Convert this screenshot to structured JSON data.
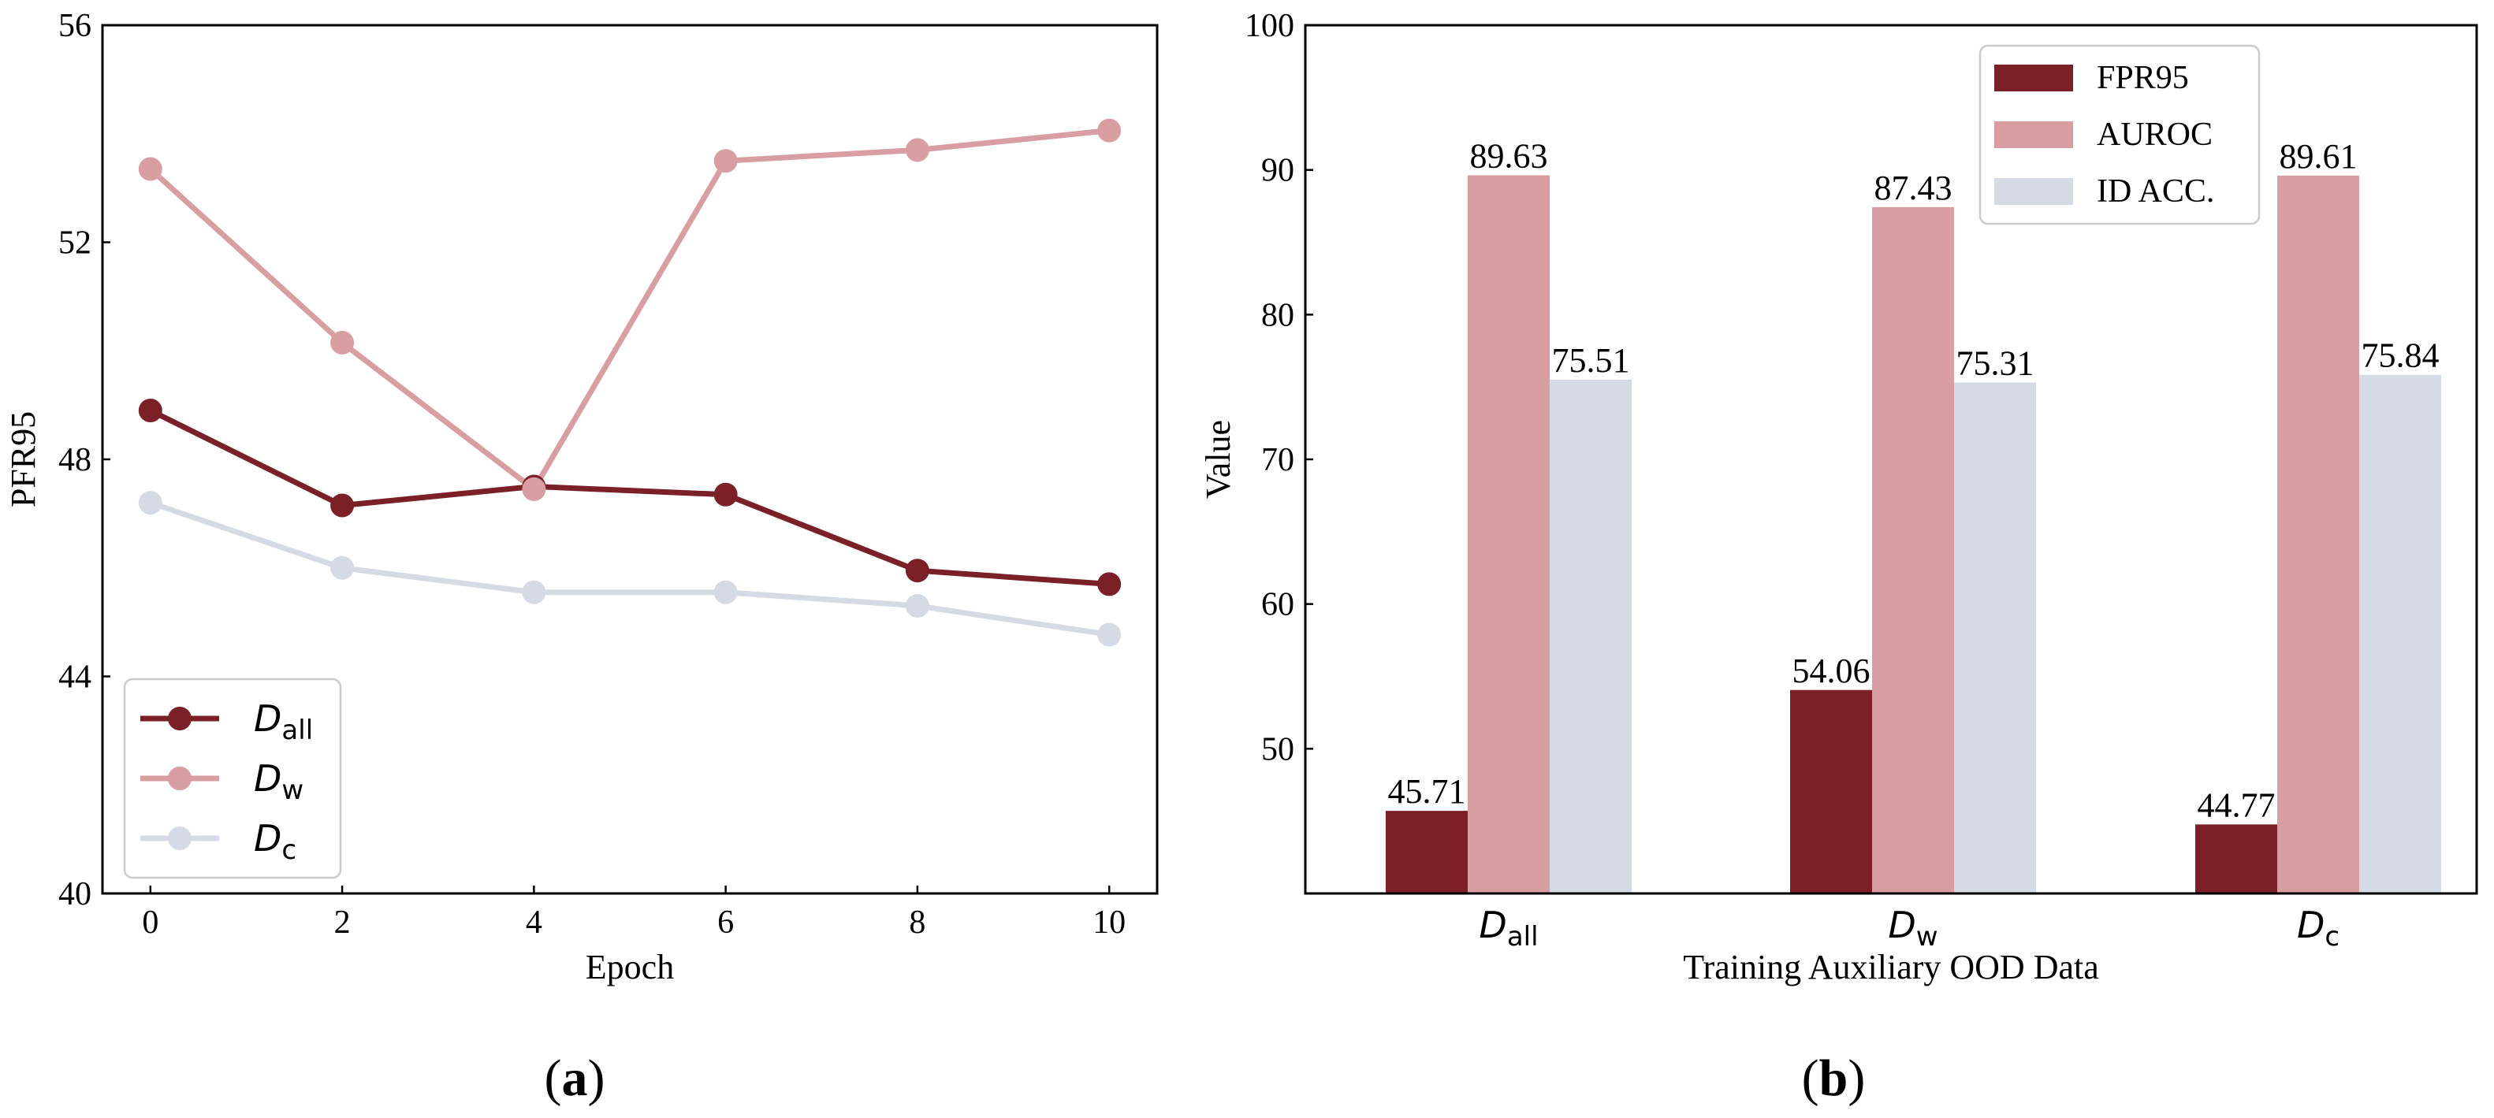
{
  "chart_data": [
    {
      "type": "line",
      "panel_label_open": "(",
      "panel_letter": "a",
      "panel_label_close": ")",
      "xlabel": "Epoch",
      "ylabel": "PFR95",
      "xlim": [
        -0.5,
        10.5
      ],
      "ylim": [
        40,
        56
      ],
      "x": [
        0,
        2,
        4,
        6,
        8,
        10
      ],
      "xticks": [
        "0",
        "2",
        "4",
        "6",
        "8",
        "10"
      ],
      "yticks": [
        "40",
        "44",
        "48",
        "52",
        "56"
      ],
      "legend_position": "lower-left",
      "series": [
        {
          "name": "D",
          "sub": "all",
          "color": "#7a2026",
          "values": [
            48.9,
            47.15,
            47.5,
            47.35,
            45.95,
            45.7
          ]
        },
        {
          "name": "D",
          "sub": "w",
          "color": "#d99ea1",
          "values": [
            53.35,
            50.15,
            47.45,
            53.5,
            53.7,
            54.06
          ]
        },
        {
          "name": "D",
          "sub": "c",
          "color": "#d5dbe5",
          "values": [
            47.2,
            46.0,
            45.55,
            45.55,
            45.3,
            44.77
          ]
        }
      ]
    },
    {
      "type": "bar",
      "panel_label_open": "(",
      "panel_letter": "b",
      "panel_label_close": ")",
      "xlabel": "Training Auxiliary OOD Data",
      "ylabel": "Value",
      "ylim": [
        40,
        100
      ],
      "yticks": [
        "50",
        "60",
        "70",
        "80",
        "90",
        "100"
      ],
      "legend_position": "top-right",
      "categories": [
        {
          "name": "D",
          "sub": "all"
        },
        {
          "name": "D",
          "sub": "w"
        },
        {
          "name": "D",
          "sub": "c"
        }
      ],
      "series": [
        {
          "name": "FPR95",
          "color": "#7a2026",
          "values": [
            45.71,
            54.06,
            44.77
          ],
          "labels": [
            "45.71",
            "54.06",
            "44.77"
          ]
        },
        {
          "name": "AUROC",
          "color": "#d99ea1",
          "values": [
            89.63,
            87.43,
            89.61
          ],
          "labels": [
            "89.63",
            "87.43",
            "89.61"
          ]
        },
        {
          "name": "ID ACC.",
          "color": "#d5dbe5",
          "values": [
            75.51,
            75.31,
            75.84
          ],
          "labels": [
            "75.51",
            "75.31",
            "75.84"
          ]
        }
      ]
    }
  ]
}
